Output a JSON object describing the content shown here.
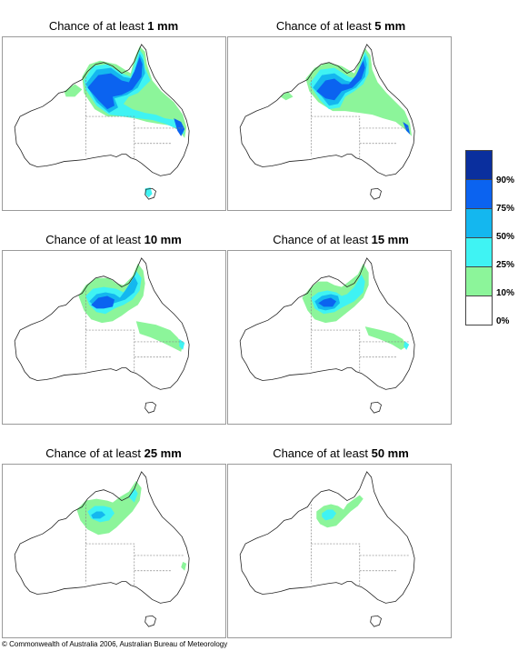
{
  "panels": [
    {
      "prefix": "Chance of at least ",
      "amount": "1 mm"
    },
    {
      "prefix": "Chance of at least ",
      "amount": "5 mm"
    },
    {
      "prefix": "Chance of at least ",
      "amount": "10 mm"
    },
    {
      "prefix": "Chance of at least ",
      "amount": "15 mm"
    },
    {
      "prefix": "Chance of at least ",
      "amount": "25 mm"
    },
    {
      "prefix": "Chance of at least ",
      "amount": "50 mm"
    }
  ],
  "legend": {
    "labels": [
      "90%",
      "75%",
      "50%",
      "25%",
      "10%",
      "0%"
    ],
    "colors": [
      "#0a2f9e",
      "#0b63f0",
      "#14b7ef",
      "#3ff3f3",
      "#8cf59a",
      "#ffffff"
    ]
  },
  "footer": "© Commonwealth of Australia 2006, Australian Bureau of Meteorology"
}
